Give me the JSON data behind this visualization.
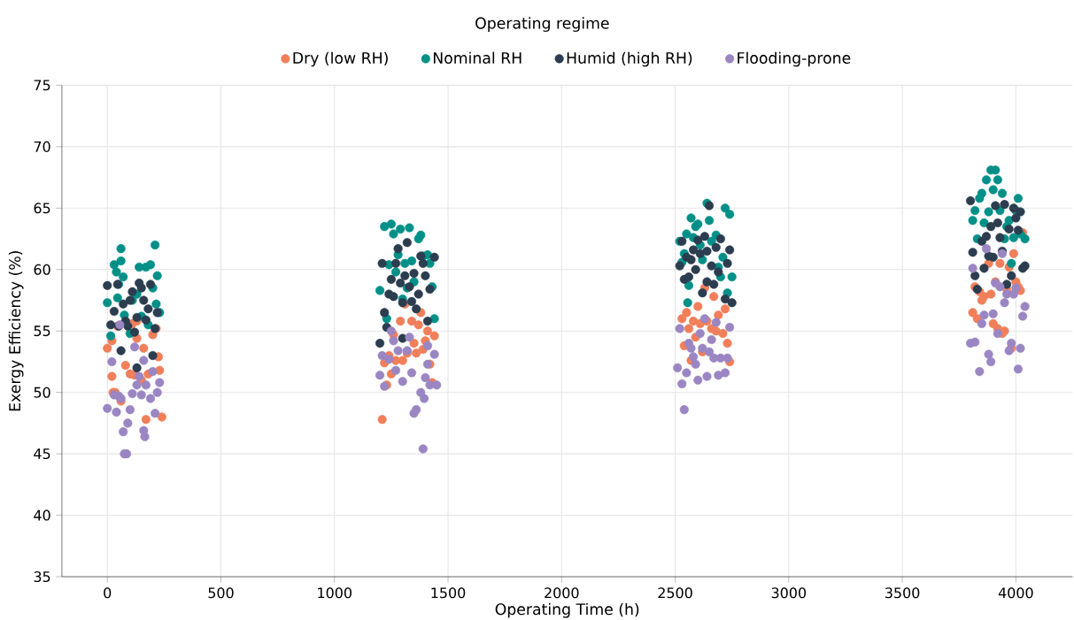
{
  "chart_data": {
    "type": "scatter",
    "xlabel": "Operating Time (h)",
    "ylabel": "Exergy Efficiency (%)",
    "legend_title": "Operating regime",
    "xlim": [
      -200,
      4250
    ],
    "ylim": [
      35,
      75
    ],
    "xticks": [
      0,
      500,
      1000,
      1500,
      2000,
      2500,
      3000,
      3500,
      4000
    ],
    "yticks": [
      35,
      40,
      45,
      50,
      55,
      60,
      65,
      70,
      75
    ],
    "grid": true,
    "legend": "top",
    "marker": "circle",
    "series": [
      {
        "name": "Dry (low RH)",
        "color": "#f07f5a",
        "x": [
          0,
          20,
          25,
          35,
          45,
          60,
          80,
          100,
          110,
          120,
          130,
          150,
          160,
          170,
          180,
          200,
          215,
          225,
          230,
          240,
          20,
          130,
          1210,
          1220,
          1230,
          1240,
          1250,
          1260,
          1270,
          1290,
          1300,
          1320,
          1340,
          1350,
          1360,
          1370,
          1390,
          1400,
          1410,
          1420,
          1430,
          1440,
          1310,
          1380,
          2530,
          2550,
          2560,
          2570,
          2580,
          2590,
          2600,
          2610,
          2620,
          2630,
          2640,
          2660,
          2670,
          2680,
          2690,
          2700,
          2710,
          2720,
          2730,
          2740,
          2540,
          3810,
          3820,
          3830,
          3840,
          3860,
          3880,
          3890,
          3900,
          3910,
          3920,
          3930,
          3940,
          3950,
          3960,
          3970,
          3980,
          3990,
          4000,
          4010,
          4020,
          4030,
          3850
        ],
        "values": [
          53.6,
          51.3,
          50,
          50,
          55.4,
          49.3,
          52.2,
          51.5,
          55.6,
          51.4,
          55.8,
          51,
          53.6,
          47.8,
          51.5,
          54.7,
          55.2,
          52.9,
          51.8,
          48,
          54.2,
          54.4,
          47.8,
          52.4,
          50.6,
          53,
          51.5,
          54.7,
          52.6,
          55.8,
          52.6,
          53.2,
          55.8,
          54,
          53.2,
          55.5,
          53.5,
          54.2,
          55,
          52.3,
          50.8,
          54.6,
          57.2,
          56.5,
          56,
          56.5,
          55.2,
          52.6,
          55.8,
          54.5,
          57,
          55.6,
          53.3,
          58.5,
          55.8,
          55.2,
          57.8,
          55,
          56.3,
          null,
          54.8,
          56.8,
          54,
          52.5,
          53.8,
          56.5,
          58.6,
          56,
          58.2,
          57.8,
          60.5,
          58,
          55.6,
          59,
          55.2,
          60.5,
          54.8,
          55,
          58.4,
          60.2,
          53.6,
          61.3,
          59,
          58.6,
          58.3,
          63,
          57.5
        ]
      },
      {
        "name": "Nominal RH",
        "color": "#009088",
        "x": [
          0,
          15,
          30,
          40,
          45,
          50,
          60,
          60,
          70,
          75,
          110,
          130,
          140,
          150,
          170,
          180,
          190,
          200,
          210,
          215,
          220,
          230,
          100,
          1200,
          1220,
          1230,
          1240,
          1250,
          1260,
          1280,
          1290,
          1300,
          1310,
          1330,
          1340,
          1350,
          1370,
          1380,
          1390,
          1410,
          1420,
          1430,
          1440,
          1270,
          1320,
          2520,
          2530,
          2540,
          2550,
          2560,
          2570,
          2580,
          2590,
          2600,
          2610,
          2620,
          2640,
          2650,
          2660,
          2680,
          2690,
          2700,
          2710,
          2720,
          2730,
          2740,
          2750,
          2555,
          3810,
          3820,
          3830,
          3840,
          3850,
          3860,
          3870,
          3880,
          3890,
          3900,
          3910,
          3920,
          3930,
          3940,
          3950,
          3960,
          3970,
          3980,
          3990,
          4000,
          4010,
          4020,
          4040
        ],
        "values": [
          57.3,
          54.6,
          60.4,
          59.8,
          57.7,
          58.8,
          61.7,
          60.7,
          59.4,
          56.3,
          57.5,
          58,
          60.2,
          56.2,
          60.2,
          55.5,
          60.4,
          58.5,
          62,
          57.2,
          59.5,
          56.5,
          54.8,
          58.3,
          63.5,
          56,
          60.4,
          63.7,
          62.9,
          61.2,
          63.3,
          57.6,
          60.5,
          63.4,
          60.7,
          59,
          62.5,
          62.8,
          61.1,
          61.2,
          60.5,
          58.6,
          56,
          59.8,
          58.5,
          62.3,
          60.6,
          61.3,
          62.9,
          58.7,
          64.2,
          62.6,
          63.5,
          63.7,
          62,
          60.8,
          65.4,
          64,
          62.3,
          62.8,
          60.2,
          59.4,
          61,
          65,
          58.1,
          64.5,
          59.4,
          57.3,
          64,
          64.8,
          62.5,
          65.8,
          66.2,
          63.8,
          67.3,
          64.7,
          68.1,
          66.5,
          68.1,
          67.3,
          64.8,
          66.2,
          62.5,
          63.5,
          64,
          60.5,
          62.6,
          64.8,
          65.8,
          62.9,
          62.5
        ]
      },
      {
        "name": "Humid (high RH)",
        "color": "#2b3d4f",
        "x": [
          0,
          15,
          30,
          45,
          50,
          60,
          70,
          80,
          90,
          100,
          110,
          120,
          130,
          140,
          150,
          160,
          170,
          180,
          190,
          200,
          210,
          220,
          130,
          1200,
          1210,
          1220,
          1230,
          1240,
          1250,
          1260,
          1270,
          1280,
          1290,
          1300,
          1310,
          1320,
          1330,
          1340,
          1350,
          1360,
          1370,
          1380,
          1390,
          1400,
          1410,
          1420,
          1440,
          1300,
          2520,
          2530,
          2540,
          2550,
          2560,
          2570,
          2580,
          2590,
          2600,
          2610,
          2620,
          2630,
          2640,
          2650,
          2660,
          2670,
          2680,
          2690,
          2700,
          2720,
          2730,
          2740,
          2750,
          2640,
          3800,
          3810,
          3820,
          3830,
          3850,
          3860,
          3870,
          3880,
          3890,
          3900,
          3910,
          3920,
          3930,
          3940,
          3950,
          3960,
          3970,
          3980,
          3990,
          4000,
          4010,
          4020,
          4030,
          4040
        ],
        "values": [
          58.7,
          55.5,
          56.6,
          58.8,
          55.4,
          53.4,
          57.2,
          55.8,
          55.4,
          57.5,
          58.2,
          54.9,
          52,
          58.9,
          58.5,
          57.5,
          55.9,
          56.8,
          58.8,
          53,
          55.2,
          56.5,
          56.1,
          54,
          60.5,
          56.5,
          55.3,
          58,
          59.2,
          57.8,
          60.5,
          61.7,
          58.9,
          57.3,
          59.5,
          62.2,
          58.6,
          57.4,
          59.7,
          56.8,
          58,
          61.1,
          60.5,
          59.5,
          55.8,
          58.4,
          61,
          54.4,
          60.3,
          62.3,
          59.2,
          61,
          59.4,
          60.8,
          61.6,
          60,
          62.4,
          61.3,
          58.1,
          62.7,
          61.5,
          65.2,
          60.3,
          58.8,
          61.8,
          59.8,
          62.5,
          57.6,
          60.5,
          61.6,
          57.3,
          59,
          65.6,
          61.4,
          59.5,
          58.4,
          62.3,
          60.1,
          62.7,
          61.1,
          63.5,
          61,
          65.2,
          63.8,
          62.6,
          61.5,
          65.3,
          58.8,
          63.3,
          59.5,
          65,
          64.2,
          63.2,
          64.7,
          60.1,
          60.3
        ]
      },
      {
        "name": "Flooding-prone",
        "color": "#9a86c2",
        "x": [
          0,
          20,
          30,
          40,
          50,
          55,
          60,
          70,
          75,
          85,
          90,
          100,
          110,
          120,
          130,
          140,
          150,
          160,
          165,
          170,
          190,
          200,
          210,
          220,
          230,
          160,
          1200,
          1210,
          1220,
          1240,
          1250,
          1260,
          1270,
          1280,
          1300,
          1320,
          1330,
          1340,
          1350,
          1360,
          1380,
          1390,
          1395,
          1400,
          1410,
          1420,
          1440,
          1450,
          1410,
          2510,
          2520,
          2530,
          2540,
          2550,
          2560,
          2570,
          2580,
          2590,
          2600,
          2620,
          2630,
          2640,
          2650,
          2660,
          2670,
          2680,
          2690,
          2700,
          2720,
          2730,
          2740,
          2610,
          3800,
          3810,
          3820,
          3840,
          3850,
          3860,
          3870,
          3880,
          3890,
          3900,
          3910,
          3920,
          3930,
          3940,
          3950,
          3960,
          3970,
          3980,
          3990,
          4000,
          4010,
          4020,
          4030,
          4040
        ],
        "values": [
          48.7,
          52.5,
          49.8,
          48.4,
          49.7,
          55.5,
          49.5,
          46.8,
          45,
          45,
          47.5,
          48.6,
          49.9,
          53.7,
          50.6,
          51.3,
          49.8,
          46.9,
          46.4,
          50.6,
          49.5,
          51.7,
          48.3,
          50,
          50.8,
          52.6,
          51.4,
          53,
          50.5,
          52.7,
          55,
          54.2,
          51.8,
          53.4,
          50.9,
          53.4,
          54.5,
          51.6,
          48.3,
          48.6,
          50,
          45.4,
          49.5,
          51.2,
          52.3,
          50.6,
          53.1,
          50.6,
          53.8,
          52,
          55.2,
          50.7,
          48.6,
          51.6,
          54,
          53.6,
          52.9,
          52.3,
          51,
          53.6,
          56,
          51.3,
          53.3,
          54.3,
          52.8,
          55.7,
          51.4,
          52.8,
          51.6,
          52.8,
          55.3,
          54.8,
          54,
          60.1,
          54.1,
          51.7,
          55.6,
          56.3,
          61.7,
          53.1,
          52.5,
          56.4,
          58.9,
          54.8,
          58.6,
          61.3,
          57.3,
          58,
          53.4,
          54,
          58,
          58.5,
          51.9,
          53.6,
          56.2,
          57
        ]
      }
    ]
  }
}
